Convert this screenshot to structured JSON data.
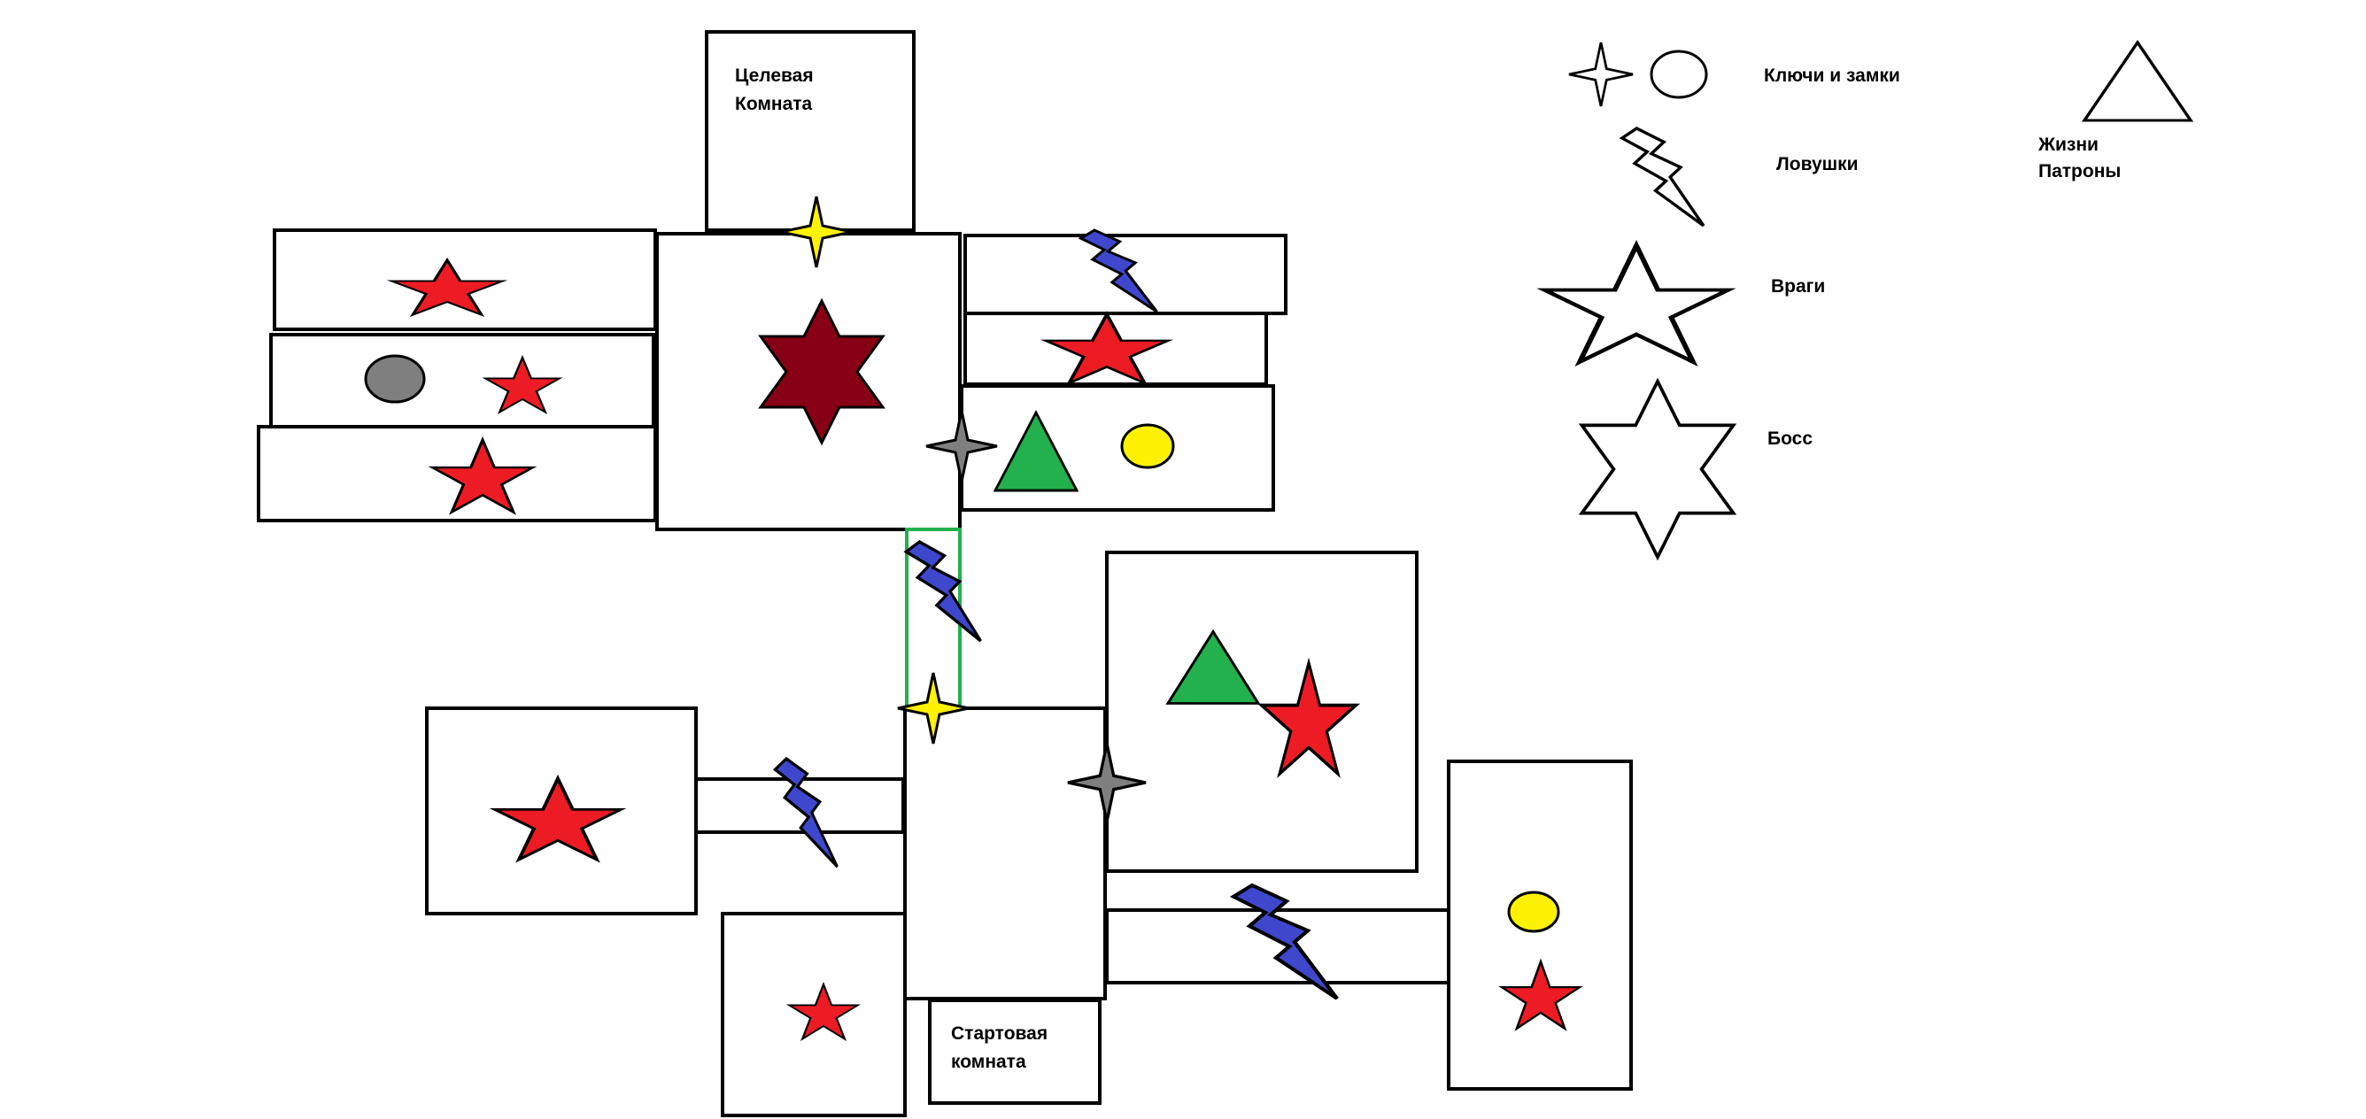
{
  "colors": {
    "enemy": "#ed1c24",
    "boss": "#880015",
    "key_yellow": "#fff200",
    "key_gray": "#7f7f7f",
    "trap": "#3f48cc",
    "pickup": "#22b14c",
    "lock_yellow": "#fff200",
    "lock_gray": "#7f7f7f",
    "passage": "#22b14c",
    "outline": "#000000"
  },
  "rooms": {
    "target": {
      "label_line1": "Целевая",
      "label_line2": "Комната"
    },
    "start": {
      "label_line1": "Стартовая",
      "label_line2": "комната"
    }
  },
  "legend": {
    "keys_locks": "Ключи и замки",
    "traps": "Ловушки",
    "pickups_line1": "Жизни",
    "pickups_line2": "Патроны",
    "enemies": "Враги",
    "boss": "Босс"
  }
}
